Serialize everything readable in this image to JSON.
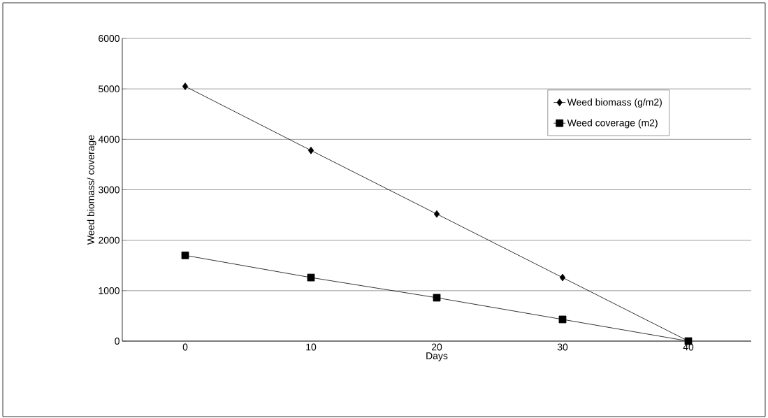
{
  "chart_data": {
    "type": "line",
    "xlabel": "Days",
    "ylabel": "Weed biomass/ coverage",
    "categories": [
      "0",
      "10",
      "20",
      "30",
      "40"
    ],
    "series": [
      {
        "name": "Weed biomass (g/m2)",
        "color": "#000000",
        "marker": "diamond",
        "values": [
          5050,
          3780,
          2520,
          1260,
          0
        ]
      },
      {
        "name": "Weed coverage (m2)",
        "color": "#000000",
        "marker": "square",
        "values": [
          1700,
          1260,
          860,
          430,
          0
        ]
      }
    ],
    "ylim": [
      0,
      6000
    ],
    "yticks": [
      0,
      1000,
      2000,
      3000,
      4000,
      5000,
      6000
    ],
    "grid": "y",
    "legend": "top right",
    "line_style": "solid"
  }
}
